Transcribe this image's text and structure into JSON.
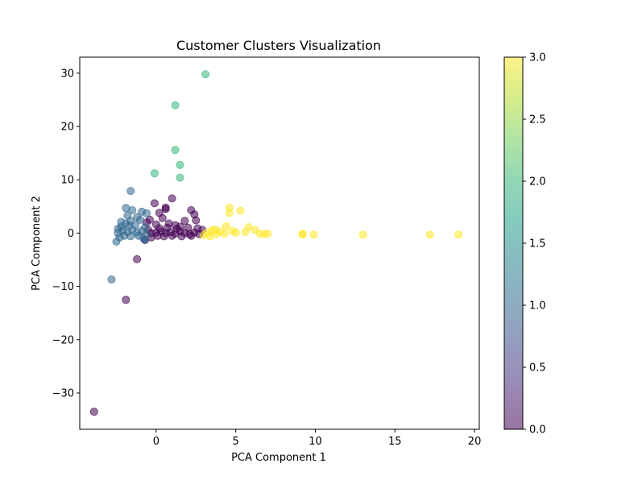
{
  "chart_data": {
    "type": "scatter",
    "title": "Customer Clusters Visualization",
    "xlabel": "PCA Component 1",
    "ylabel": "PCA Component 2",
    "xlim": [
      -4.8,
      20.3
    ],
    "ylim": [
      -36.8,
      33
    ],
    "xticks": [
      0,
      5,
      10,
      15,
      20
    ],
    "yticks": [
      -30,
      -20,
      -10,
      0,
      10,
      20,
      30
    ],
    "grid": false,
    "colorbar": {
      "range": [
        0.0,
        3.0
      ],
      "ticks": [
        "0.0",
        "0.5",
        "1.0",
        "1.5",
        "2.0",
        "2.5",
        "3.0"
      ],
      "colormap": "viridis",
      "stops": [
        "#440154",
        "#482878",
        "#3e4989",
        "#31688e",
        "#26828e",
        "#1f9e89",
        "#35b779",
        "#6ece58",
        "#b5de2b",
        "#fde725"
      ]
    },
    "points": [
      {
        "x": -3.9,
        "y": -33.5,
        "c": 0
      },
      {
        "x": -1.9,
        "y": -12.5,
        "c": 0
      },
      {
        "x": -1.2,
        "y": -4.9,
        "c": 0
      },
      {
        "x": -0.1,
        "y": 5.6,
        "c": 0
      },
      {
        "x": 0.6,
        "y": 4.5,
        "c": 0
      },
      {
        "x": 0.6,
        "y": 4.8,
        "c": 0
      },
      {
        "x": 1.0,
        "y": 6.5,
        "c": 0
      },
      {
        "x": 2.2,
        "y": 4.3,
        "c": 0
      },
      {
        "x": 2.4,
        "y": 3.5,
        "c": 0
      },
      {
        "x": 2.5,
        "y": 2.4,
        "c": 0
      },
      {
        "x": 1.8,
        "y": 2.3,
        "c": 0
      },
      {
        "x": 0.2,
        "y": 3.8,
        "c": 0
      },
      {
        "x": 0.4,
        "y": 2.8,
        "c": 0
      },
      {
        "x": -0.4,
        "y": 2.5,
        "c": 0
      },
      {
        "x": -0.6,
        "y": 2.0,
        "c": 0
      },
      {
        "x": 0.0,
        "y": 1.6,
        "c": 0
      },
      {
        "x": 0.8,
        "y": 1.8,
        "c": 0
      },
      {
        "x": 1.2,
        "y": 1.5,
        "c": 0
      },
      {
        "x": 1.5,
        "y": 1.2,
        "c": 0
      },
      {
        "x": 2.0,
        "y": 1.0,
        "c": 0
      },
      {
        "x": 2.6,
        "y": 0.9,
        "c": 0
      },
      {
        "x": 2.9,
        "y": 0.6,
        "c": 0
      },
      {
        "x": -0.7,
        "y": -1.3,
        "c": 0
      },
      {
        "x": -0.3,
        "y": -0.8,
        "c": 0
      },
      {
        "x": -0.3,
        "y": 0.0,
        "c": 0
      },
      {
        "x": 0.0,
        "y": 0.1,
        "c": 0
      },
      {
        "x": 0.3,
        "y": 0.3,
        "c": 0
      },
      {
        "x": 0.6,
        "y": 0.0,
        "c": 0
      },
      {
        "x": 0.9,
        "y": 0.2,
        "c": 0
      },
      {
        "x": 1.2,
        "y": -0.1,
        "c": 0
      },
      {
        "x": 1.5,
        "y": 0.3,
        "c": 0
      },
      {
        "x": 1.8,
        "y": 0.0,
        "c": 0
      },
      {
        "x": 2.1,
        "y": -0.2,
        "c": 0
      },
      {
        "x": 2.4,
        "y": 0.1,
        "c": 0
      },
      {
        "x": 2.7,
        "y": -0.2,
        "c": 0
      },
      {
        "x": 0.1,
        "y": -0.5,
        "c": 0
      },
      {
        "x": 0.5,
        "y": -0.6,
        "c": 0
      },
      {
        "x": 1.0,
        "y": -0.5,
        "c": 0
      },
      {
        "x": 1.6,
        "y": -0.6,
        "c": 0
      },
      {
        "x": 2.2,
        "y": -0.5,
        "c": 0
      },
      {
        "x": -0.5,
        "y": 0.6,
        "c": 0
      },
      {
        "x": 0.2,
        "y": 0.9,
        "c": 0
      },
      {
        "x": 0.7,
        "y": 1.0,
        "c": 0
      },
      {
        "x": 1.3,
        "y": 0.8,
        "c": 0
      },
      {
        "x": -2.8,
        "y": -8.7,
        "c": 1
      },
      {
        "x": -1.6,
        "y": 7.9,
        "c": 1
      },
      {
        "x": -1.9,
        "y": 4.7,
        "c": 1
      },
      {
        "x": -1.5,
        "y": 4.3,
        "c": 1
      },
      {
        "x": -0.9,
        "y": 4.0,
        "c": 1
      },
      {
        "x": -0.6,
        "y": 3.7,
        "c": 1
      },
      {
        "x": -1.8,
        "y": 3.3,
        "c": 1
      },
      {
        "x": -1.2,
        "y": 3.0,
        "c": 1
      },
      {
        "x": -2.2,
        "y": 2.1,
        "c": 1
      },
      {
        "x": -1.6,
        "y": 2.3,
        "c": 1
      },
      {
        "x": -1.0,
        "y": 2.5,
        "c": 1
      },
      {
        "x": -2.5,
        "y": -1.6,
        "c": 1
      },
      {
        "x": -2.3,
        "y": -0.8,
        "c": 1
      },
      {
        "x": -0.8,
        "y": -1.0,
        "c": 1
      },
      {
        "x": -0.7,
        "y": -1.3,
        "c": 1
      },
      {
        "x": -2.4,
        "y": 0.0,
        "c": 1
      },
      {
        "x": -2.1,
        "y": 0.5,
        "c": 1
      },
      {
        "x": -1.8,
        "y": 0.2,
        "c": 1
      },
      {
        "x": -1.5,
        "y": 0.6,
        "c": 1
      },
      {
        "x": -1.2,
        "y": 0.1,
        "c": 1
      },
      {
        "x": -0.9,
        "y": 0.4,
        "c": 1
      },
      {
        "x": -2.0,
        "y": -0.5,
        "c": 1
      },
      {
        "x": -1.6,
        "y": -0.6,
        "c": 1
      },
      {
        "x": -1.1,
        "y": -0.5,
        "c": 1
      },
      {
        "x": -2.2,
        "y": 1.2,
        "c": 1
      },
      {
        "x": -1.7,
        "y": 1.4,
        "c": 1
      },
      {
        "x": -1.3,
        "y": 1.5,
        "c": 1
      },
      {
        "x": -0.7,
        "y": 1.1,
        "c": 1
      },
      {
        "x": -2.4,
        "y": 0.8,
        "c": 1
      },
      {
        "x": -0.6,
        "y": -0.2,
        "c": 1
      },
      {
        "x": -1.9,
        "y": 1.8,
        "c": 1
      },
      {
        "x": 3.1,
        "y": 29.8,
        "c": 2
      },
      {
        "x": 1.2,
        "y": 24.0,
        "c": 2
      },
      {
        "x": 1.2,
        "y": 15.6,
        "c": 2
      },
      {
        "x": 1.5,
        "y": 12.8,
        "c": 2
      },
      {
        "x": 1.5,
        "y": 10.4,
        "c": 2
      },
      {
        "x": -0.1,
        "y": 11.2,
        "c": 2
      },
      {
        "x": 4.6,
        "y": 4.8,
        "c": 3
      },
      {
        "x": 4.6,
        "y": 3.8,
        "c": 3
      },
      {
        "x": 5.3,
        "y": 4.2,
        "c": 3
      },
      {
        "x": 4.4,
        "y": 1.3,
        "c": 3
      },
      {
        "x": 5.8,
        "y": 1.1,
        "c": 3
      },
      {
        "x": 6.2,
        "y": 0.6,
        "c": 3
      },
      {
        "x": 5.6,
        "y": 0.2,
        "c": 3
      },
      {
        "x": 3.0,
        "y": -0.4,
        "c": 3
      },
      {
        "x": 3.2,
        "y": 0.1,
        "c": 3
      },
      {
        "x": 3.5,
        "y": 0.5,
        "c": 3
      },
      {
        "x": 3.8,
        "y": -0.2,
        "c": 3
      },
      {
        "x": 4.0,
        "y": 0.3,
        "c": 3
      },
      {
        "x": 4.3,
        "y": -0.1,
        "c": 3
      },
      {
        "x": 4.8,
        "y": 0.4,
        "c": 3
      },
      {
        "x": 5.0,
        "y": 0.1,
        "c": 3
      },
      {
        "x": 3.4,
        "y": -0.6,
        "c": 3
      },
      {
        "x": 3.7,
        "y": 0.7,
        "c": 3
      },
      {
        "x": 6.5,
        "y": -0.1,
        "c": 3
      },
      {
        "x": 6.8,
        "y": -0.2,
        "c": 3
      },
      {
        "x": 7.0,
        "y": -0.1,
        "c": 3
      },
      {
        "x": 9.2,
        "y": -0.1,
        "c": 3
      },
      {
        "x": 9.2,
        "y": -0.3,
        "c": 3
      },
      {
        "x": 9.9,
        "y": -0.3,
        "c": 3
      },
      {
        "x": 13.0,
        "y": -0.3,
        "c": 3
      },
      {
        "x": 17.2,
        "y": -0.3,
        "c": 3
      },
      {
        "x": 19.0,
        "y": -0.3,
        "c": 3
      }
    ]
  }
}
